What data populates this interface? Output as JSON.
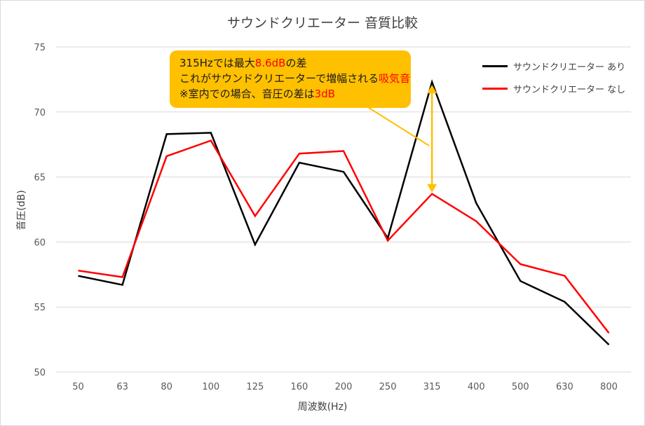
{
  "chart_data": {
    "type": "line",
    "title": "サウンドクリエーター 音質比較",
    "xlabel": "周波数(Hz)",
    "ylabel": "音圧(dB)",
    "categories": [
      "50",
      "63",
      "80",
      "100",
      "125",
      "160",
      "200",
      "250",
      "315",
      "400",
      "500",
      "630",
      "800"
    ],
    "ylim": [
      50,
      75
    ],
    "yticks": [
      "50",
      "55",
      "60",
      "65",
      "70",
      "75"
    ],
    "grid": true,
    "legend_position": "top-right",
    "series": [
      {
        "name": "サウンドクリエーター あり",
        "color": "#000000",
        "values": [
          57.4,
          56.7,
          68.3,
          68.4,
          59.8,
          66.1,
          65.4,
          60.3,
          72.3,
          63.0,
          57.0,
          55.4,
          52.1
        ]
      },
      {
        "name": "サウンドクリエーター なし",
        "color": "#ff0000",
        "values": [
          57.8,
          57.3,
          66.6,
          67.8,
          62.0,
          66.8,
          67.0,
          60.1,
          63.7,
          61.6,
          58.3,
          57.4,
          53.0
        ]
      }
    ],
    "annotation": {
      "line1_a": "315Hzでは最大",
      "line1_b": "8.6dB",
      "line1_c": "の差",
      "line2_a": "これがサウンドクリエーターで増幅される",
      "line2_b": "吸気音",
      "line3_a": "※室内での場合、音圧の差は",
      "line3_b": "3dB",
      "box_color": "#ffc000",
      "arrow_color": "#ffc000"
    }
  }
}
